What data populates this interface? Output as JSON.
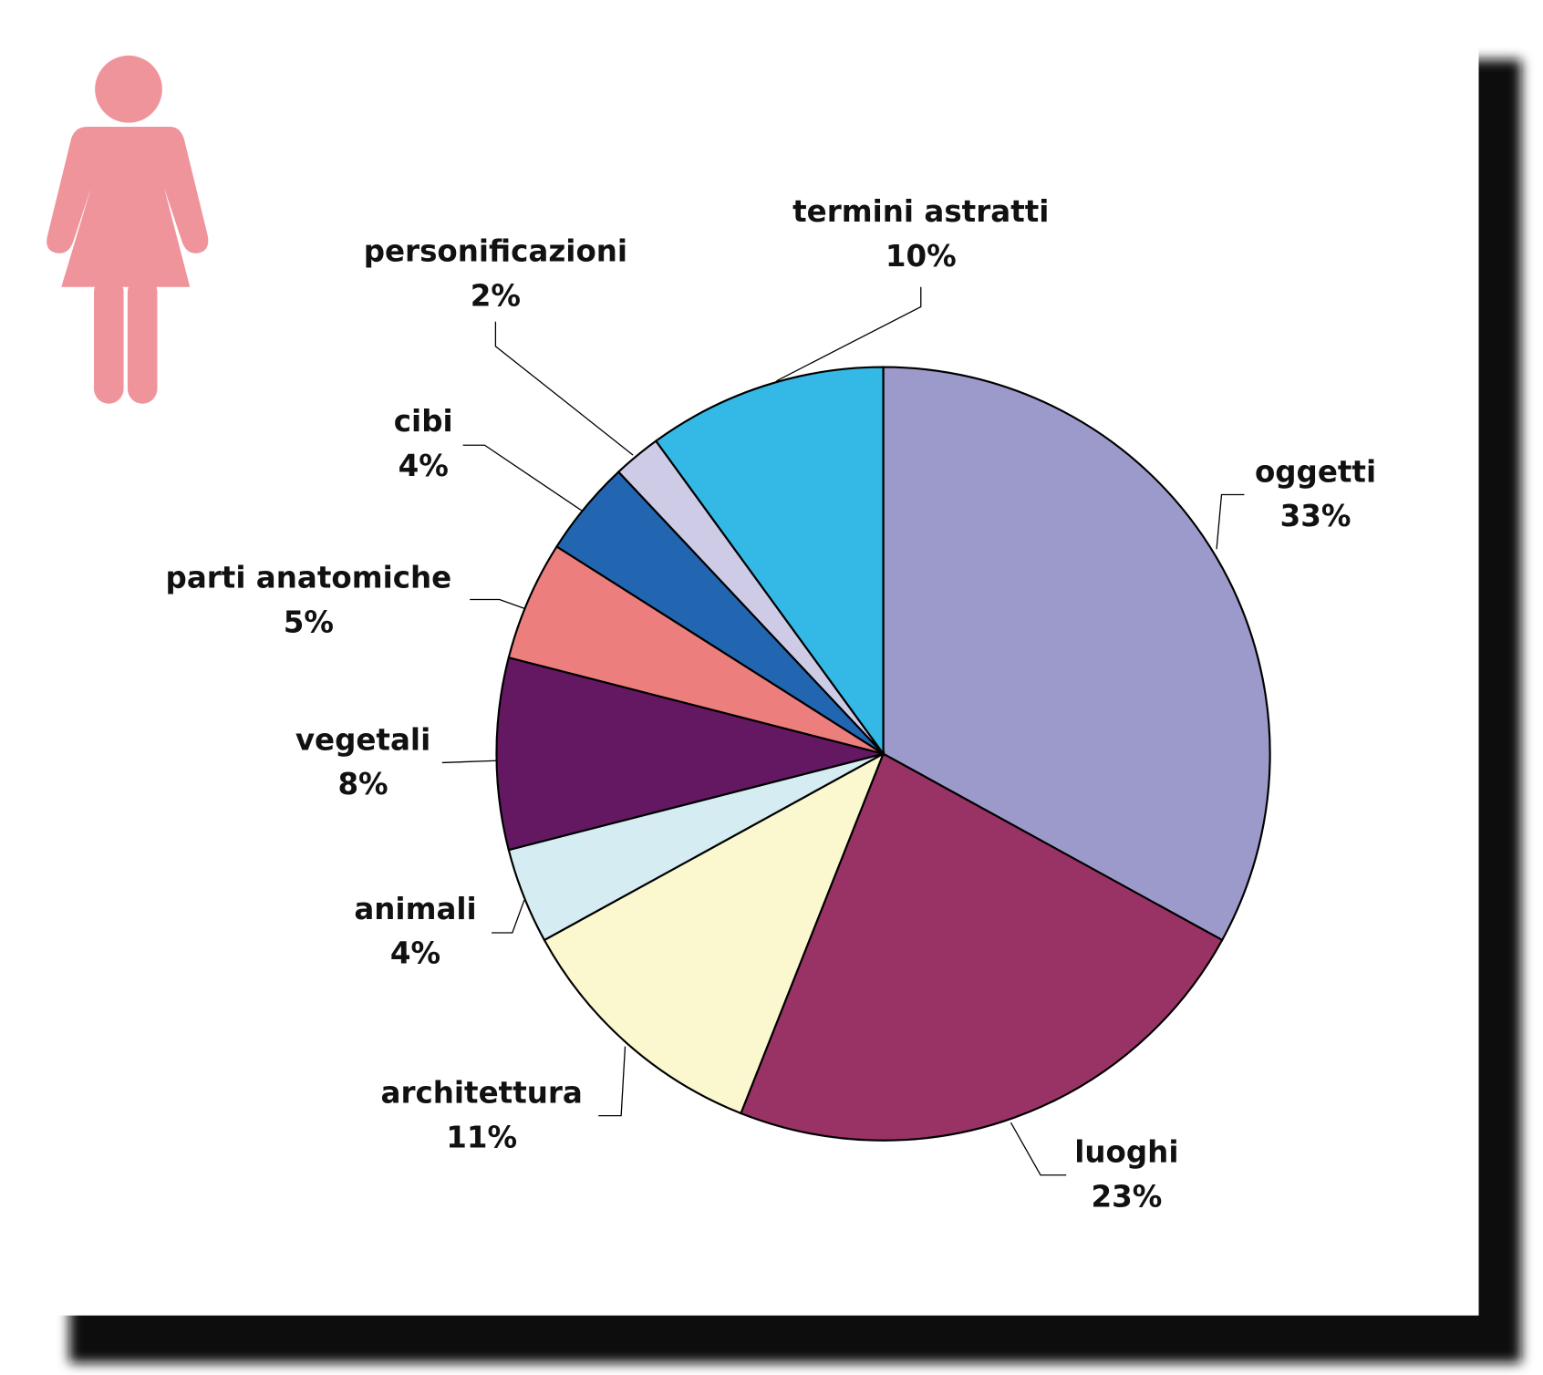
{
  "chart_data": {
    "type": "pie",
    "start": "12 o'clock",
    "direction": "clockwise",
    "slices": [
      {
        "label": "oggetti",
        "value": 33,
        "value_label": "33%",
        "color": "#9c9acb"
      },
      {
        "label": "luoghi",
        "value": 23,
        "value_label": "23%",
        "color": "#993366"
      },
      {
        "label": "architettura",
        "value": 11,
        "value_label": "11%",
        "color": "#fbf8d0"
      },
      {
        "label": "animali",
        "value": 4,
        "value_label": "4%",
        "color": "#d4ecf2"
      },
      {
        "label": "vegetali",
        "value": 8,
        "value_label": "8%",
        "color": "#651862"
      },
      {
        "label": "parti anatomiche",
        "value": 5,
        "value_label": "5%",
        "color": "#ec7f7e"
      },
      {
        "label": "cibi",
        "value": 4,
        "value_label": "4%",
        "color": "#2266b2"
      },
      {
        "label": "personificazioni",
        "value": 2,
        "value_label": "2%",
        "color": "#cdcbe5"
      },
      {
        "label": "termini astratti",
        "value": 10,
        "value_label": "10%",
        "color": "#34b8e6"
      }
    ]
  },
  "icon": {
    "name": "woman-icon",
    "color": "#f0949c"
  }
}
